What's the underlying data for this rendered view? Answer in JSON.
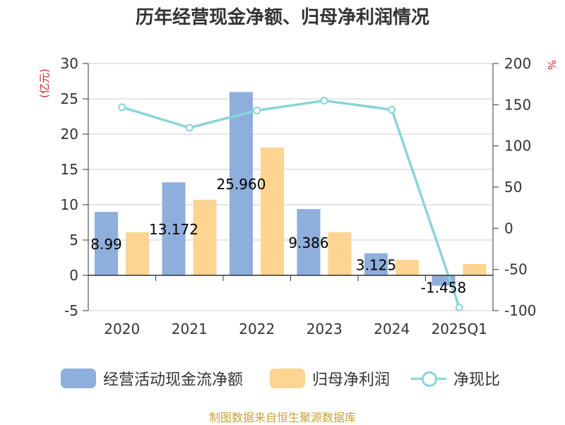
{
  "title": "历年经营现金净额、归母净利润情况",
  "source": "制图数据来自恒生聚源数据库",
  "colors": {
    "cash": "#8eaedc",
    "profit": "#fdd492",
    "ratio": "#8ad4d8",
    "axis": "#333333",
    "grid": "#cccccc",
    "unit": "#d9242a",
    "source": "#c8a23a"
  },
  "chart_data": {
    "type": "bar",
    "categories": [
      "2020",
      "2021",
      "2022",
      "2023",
      "2024",
      "2025Q1"
    ],
    "y_left_unit": "(亿元)",
    "y_right_unit": "%",
    "y_left_range": [
      -5,
      30
    ],
    "y_left_ticks": [
      "-5",
      "0",
      "5",
      "10",
      "15",
      "20",
      "25",
      "30"
    ],
    "y_right_range": [
      -100,
      200
    ],
    "y_right_ticks": [
      "-100",
      "-50",
      "0",
      "50",
      "100",
      "150",
      "200"
    ],
    "grid": true,
    "series": [
      {
        "name": "经营活动现金流净额",
        "type": "bar",
        "axis": "left",
        "values": [
          8.99,
          13.17,
          25.96,
          9.386,
          3.125,
          -1.458
        ],
        "labels": [
          "8.99",
          "13.172",
          "25.960",
          "9.386",
          "3.125",
          "-1.458"
        ]
      },
      {
        "name": "归母净利润",
        "type": "bar",
        "axis": "left",
        "values": [
          6.1,
          10.7,
          18.1,
          6.1,
          2.2,
          1.6
        ]
      },
      {
        "name": "净现比",
        "type": "line",
        "axis": "right",
        "values": [
          147,
          122,
          143,
          155,
          144,
          -96
        ]
      }
    ]
  }
}
